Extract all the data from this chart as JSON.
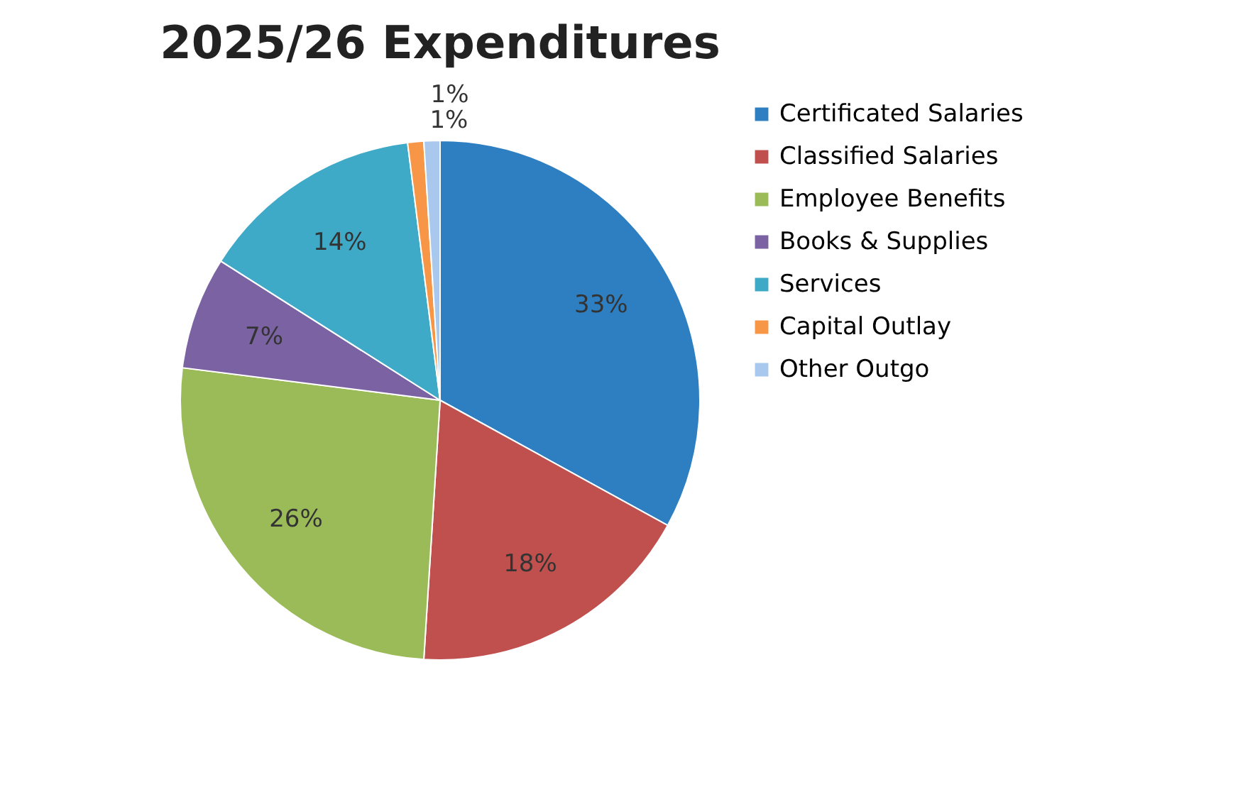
{
  "chart_data": {
    "type": "pie",
    "title": "2025/26 Expenditures",
    "categories": [
      "Certificated Salaries",
      "Classified Salaries",
      "Employee Benefits",
      "Books & Supplies",
      "Services",
      "Capital Outlay",
      "Other Outgo"
    ],
    "values": [
      33,
      18,
      26,
      7,
      14,
      1,
      1
    ],
    "colors": [
      "#2e7fc1",
      "#c0504d",
      "#9bbb59",
      "#7b62a3",
      "#3eaac8",
      "#f79646",
      "#a9c8ee"
    ],
    "value_labels": [
      "33%",
      "18%",
      "26%",
      "7%",
      "14%",
      "1%",
      "1%"
    ],
    "legend": "right"
  }
}
